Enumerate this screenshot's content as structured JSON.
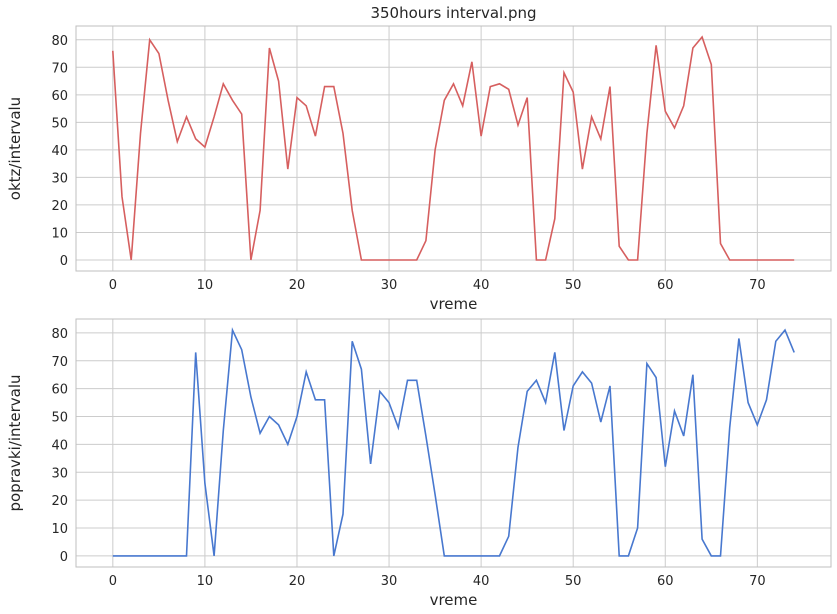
{
  "chart_data": [
    {
      "type": "line",
      "title": "350hours interval.png",
      "xlabel": "vreme",
      "ylabel": "oktz/intervalu",
      "xlim": [
        -4,
        78
      ],
      "ylim": [
        -4,
        85
      ],
      "xticks": [
        0,
        10,
        20,
        30,
        40,
        50,
        60,
        70
      ],
      "yticks": [
        0,
        10,
        20,
        30,
        40,
        50,
        60,
        70,
        80
      ],
      "grid": true,
      "color": "#d65f5f",
      "series": [
        {
          "x": [
            0,
            1,
            2,
            3,
            4,
            5,
            6,
            7,
            8,
            9,
            10,
            11,
            12,
            13,
            14,
            15,
            16,
            17,
            18,
            19,
            20,
            21,
            22,
            23,
            24,
            25,
            26,
            27,
            28,
            29,
            30,
            31,
            32,
            33,
            34,
            35,
            36,
            37,
            38,
            39,
            40,
            41,
            42,
            43,
            44,
            45,
            46,
            47,
            48,
            49,
            50,
            51,
            52,
            53,
            54,
            55,
            56,
            57,
            58,
            59,
            60,
            61,
            62,
            63,
            64,
            65,
            66,
            67,
            68,
            69,
            70,
            71,
            72,
            73,
            74
          ],
          "values": [
            76,
            23,
            0,
            46,
            80,
            75,
            58,
            43,
            52,
            44,
            41,
            52,
            64,
            58,
            53,
            0,
            18,
            77,
            65,
            33,
            59,
            56,
            45,
            63,
            63,
            46,
            18,
            0,
            0,
            0,
            0,
            0,
            0,
            0,
            7,
            40,
            58,
            64,
            56,
            72,
            45,
            63,
            64,
            62,
            49,
            59,
            0,
            0,
            15,
            68,
            61,
            33,
            52,
            44,
            63,
            5,
            0,
            0,
            46,
            78,
            54,
            48,
            56,
            77,
            81,
            71,
            6,
            0,
            0,
            0,
            0,
            0,
            0,
            0,
            0
          ]
        }
      ]
    },
    {
      "type": "line",
      "title": "",
      "xlabel": "vreme",
      "ylabel": "popravki/intervalu",
      "xlim": [
        -4,
        78
      ],
      "ylim": [
        -4,
        85
      ],
      "xticks": [
        0,
        10,
        20,
        30,
        40,
        50,
        60,
        70
      ],
      "yticks": [
        0,
        10,
        20,
        30,
        40,
        50,
        60,
        70,
        80
      ],
      "grid": true,
      "color": "#4878cf",
      "series": [
        {
          "x": [
            0,
            1,
            2,
            3,
            4,
            5,
            6,
            7,
            8,
            9,
            10,
            11,
            12,
            13,
            14,
            15,
            16,
            17,
            18,
            19,
            20,
            21,
            22,
            23,
            24,
            25,
            26,
            27,
            28,
            29,
            30,
            31,
            32,
            33,
            34,
            35,
            36,
            37,
            38,
            39,
            40,
            41,
            42,
            43,
            44,
            45,
            46,
            47,
            48,
            49,
            50,
            51,
            52,
            53,
            54,
            55,
            56,
            57,
            58,
            59,
            60,
            61,
            62,
            63,
            64,
            65,
            66,
            67,
            68,
            69,
            70,
            71,
            72,
            73,
            74
          ],
          "values": [
            0,
            0,
            0,
            0,
            0,
            0,
            0,
            0,
            0,
            73,
            26,
            0,
            45,
            81,
            74,
            57,
            44,
            50,
            47,
            40,
            50,
            66,
            56,
            56,
            0,
            15,
            77,
            67,
            33,
            59,
            55,
            46,
            63,
            63,
            43,
            22,
            0,
            0,
            0,
            0,
            0,
            0,
            0,
            7,
            39,
            59,
            63,
            55,
            73,
            45,
            61,
            66,
            62,
            48,
            61,
            0,
            0,
            10,
            69,
            64,
            32,
            52,
            43,
            65,
            6,
            0,
            0,
            46,
            78,
            55,
            47,
            56,
            77,
            81,
            73
          ]
        }
      ]
    }
  ]
}
